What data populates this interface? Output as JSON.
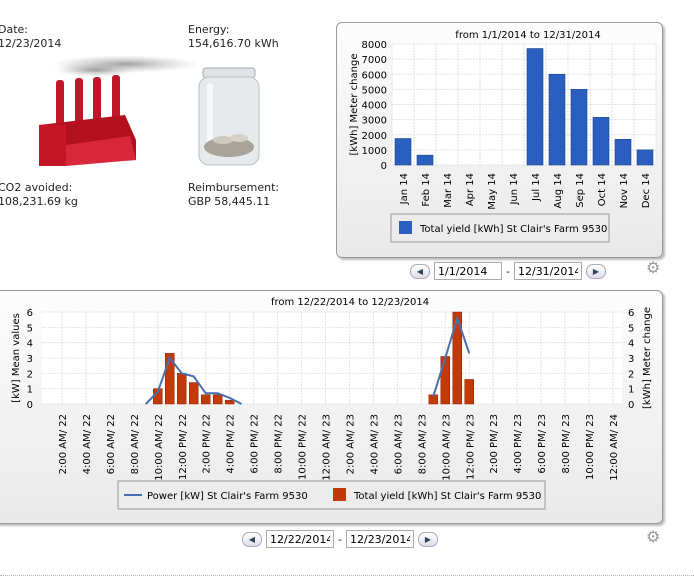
{
  "kpis": {
    "date_label": "Date:",
    "date_value": "12/23/2014",
    "energy_label": "Energy:",
    "energy_value": "154,616.70 kWh",
    "co2_label": "CO2 avoided:",
    "co2_value": "108,231.69 kg",
    "reimb_label": "Reimbursement:",
    "reimb_value": "GBP 58,445.11"
  },
  "top_nav": {
    "from": "1/1/2014",
    "to": "12/31/2014",
    "sep": "-"
  },
  "bottom_nav": {
    "from": "12/22/2014",
    "to": "12/23/2014",
    "sep": "-"
  },
  "icons": {
    "prev": "arrow-left-icon",
    "next": "arrow-right-icon",
    "settings": "gear-icon",
    "factory": "factory-icon",
    "jar": "coin-jar-icon"
  },
  "chart_data": [
    {
      "type": "bar",
      "title": "from 1/1/2014 to 12/31/2014",
      "ylabel": "[kWh] Meter change",
      "ylim": [
        0,
        8000
      ],
      "yticks": [
        0,
        1000,
        2000,
        3000,
        4000,
        5000,
        6000,
        7000,
        8000
      ],
      "grid": true,
      "categories": [
        "Jan 14",
        "Feb 14",
        "Mar 14",
        "Apr 14",
        "May 14",
        "Jun 14",
        "Jul 14",
        "Aug 14",
        "Sep 14",
        "Oct 14",
        "Nov 14",
        "Dec 14"
      ],
      "series": [
        {
          "name": "Total yield [kWh] St Clair's Farm 9530",
          "color": "#2a5fbf",
          "values": [
            1750,
            650,
            0,
            0,
            0,
            0,
            7700,
            6000,
            5000,
            3150,
            1700,
            1000
          ]
        }
      ],
      "legend": "bottom"
    },
    {
      "type": "bar+line",
      "title": "from 12/22/2014 to 12/23/2014",
      "ylabel_left": "[kW] Mean values",
      "ylabel_right": "[kWh] Meter change",
      "ylim": [
        0,
        6
      ],
      "yticks": [
        0,
        1,
        2,
        3,
        4,
        5,
        6
      ],
      "grid": true,
      "xticks": [
        "2:00 AM/ 22",
        "4:00 AM/ 22",
        "6:00 AM/ 22",
        "8:00 AM/ 22",
        "10:00 AM/ 22",
        "12:00 PM/ 22",
        "2:00 PM/ 22",
        "4:00 PM/ 22",
        "6:00 PM/ 22",
        "8:00 PM/ 22",
        "10:00 PM/ 22",
        "12:00 AM/ 23",
        "2:00 AM/ 23",
        "4:00 AM/ 23",
        "6:00 AM/ 23",
        "8:00 AM/ 23",
        "10:00 AM/ 23",
        "12:00 PM/ 23",
        "2:00 PM/ 23",
        "4:00 PM/ 23",
        "6:00 PM/ 23",
        "8:00 PM/ 23",
        "10:00 PM/ 23",
        "12:00 AM/ 24"
      ],
      "series": [
        {
          "name": "Power [kW] St Clair's Farm 9530",
          "kind": "line",
          "color": "#4a6fb0",
          "points": [
            [
              "12/22 9:00",
              0
            ],
            [
              "12/22 10:00",
              0.8
            ],
            [
              "12/22 11:00",
              3.0
            ],
            [
              "12/22 12:00",
              2.0
            ],
            [
              "12/22 13:00",
              1.8
            ],
            [
              "12/22 14:00",
              0.7
            ],
            [
              "12/22 15:00",
              0.7
            ],
            [
              "12/22 16:00",
              0.4
            ],
            [
              "12/22 17:00",
              0
            ],
            [
              "12/23 9:00",
              0.5
            ],
            [
              "12/23 10:00",
              3.0
            ],
            [
              "12/23 11:00",
              5.6
            ],
            [
              "12/23 12:00",
              3.3
            ]
          ]
        },
        {
          "name": "Total yield [kWh] St Clair's Farm 9530",
          "kind": "bar",
          "color": "#c03a0a",
          "points": [
            [
              "12/22 10:00",
              1.0
            ],
            [
              "12/22 11:00",
              3.3
            ],
            [
              "12/22 12:00",
              2.0
            ],
            [
              "12/22 13:00",
              1.4
            ],
            [
              "12/22 14:00",
              0.6
            ],
            [
              "12/22 15:00",
              0.6
            ],
            [
              "12/22 16:00",
              0.25
            ],
            [
              "12/23 9:00",
              0.6
            ],
            [
              "12/23 10:00",
              3.1
            ],
            [
              "12/23 11:00",
              6.0
            ],
            [
              "12/23 12:00",
              1.6
            ]
          ]
        }
      ],
      "legend": "bottom"
    }
  ]
}
